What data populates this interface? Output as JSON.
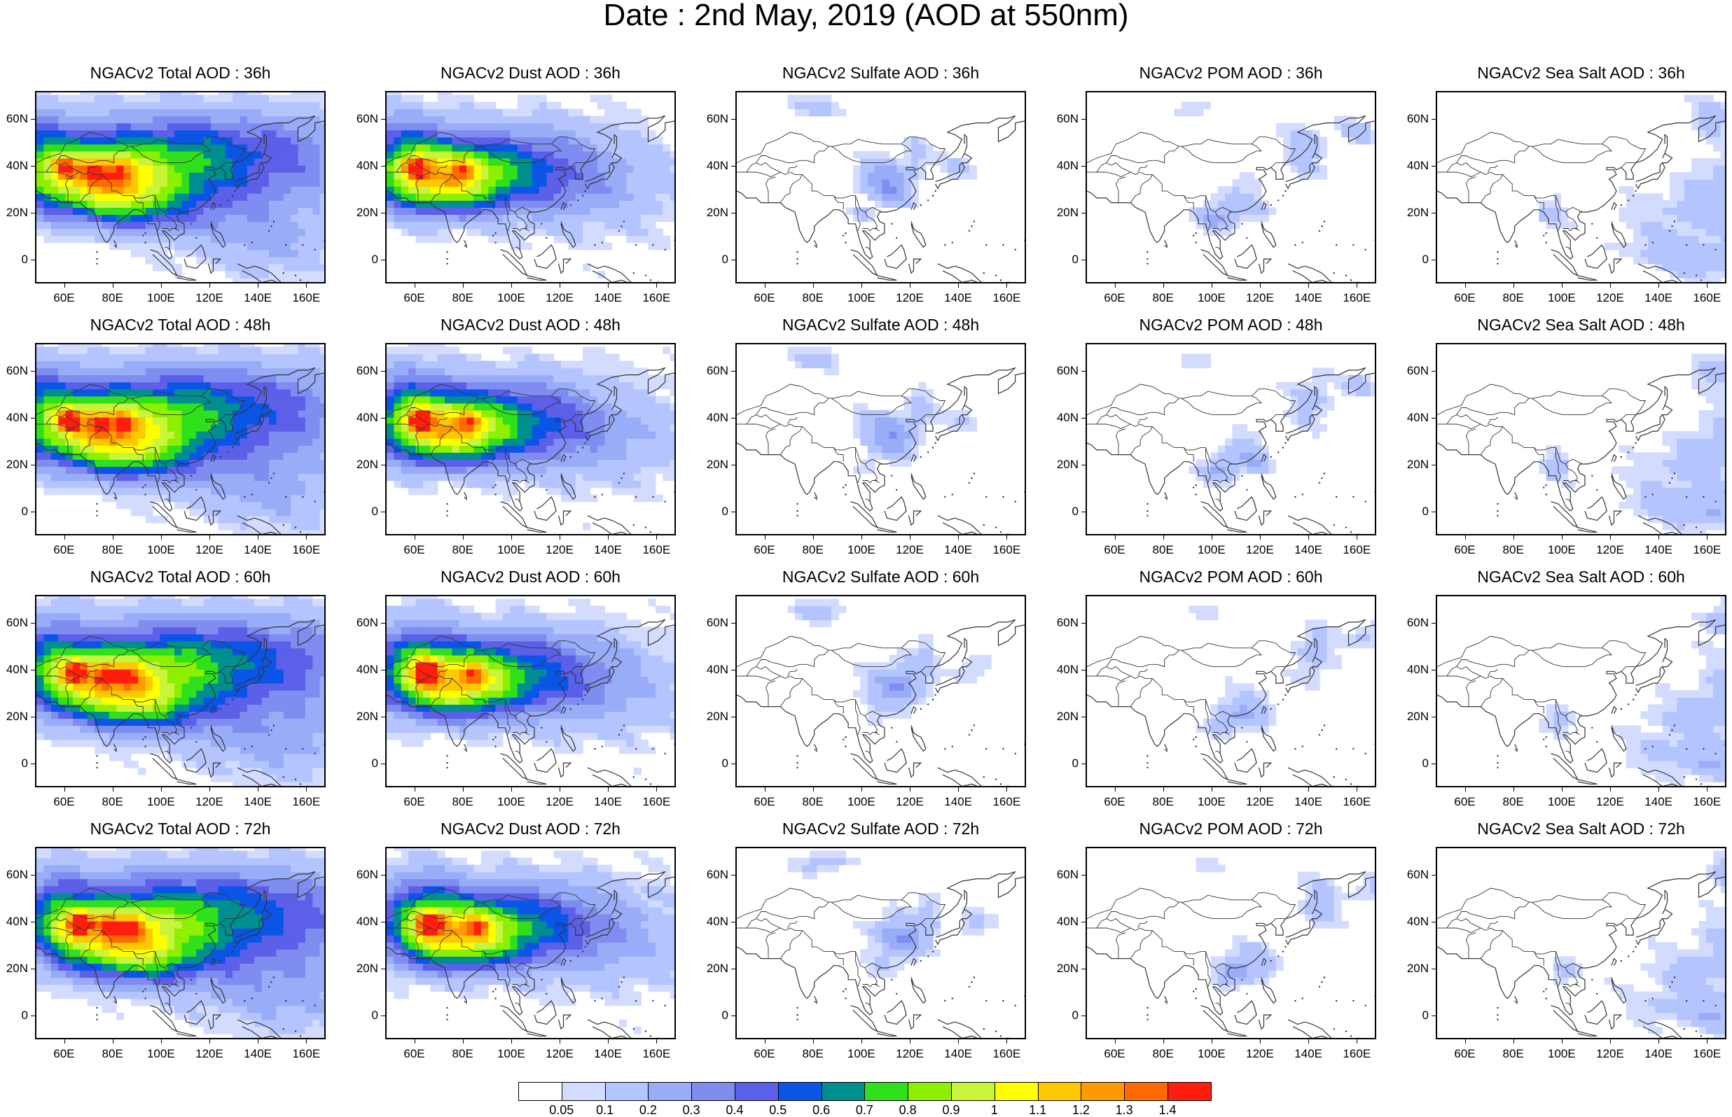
{
  "title": "Date : 2nd May, 2019 (AOD at 550nm)",
  "panel_titles": [
    [
      "NGACv2 Total AOD : 36h",
      "NGACv2 Dust AOD : 36h",
      "NGACv2 Sulfate AOD : 36h",
      "NGACv2 POM AOD : 36h",
      "NGACv2 Sea Salt AOD : 36h"
    ],
    [
      "NGACv2 Total AOD : 48h",
      "NGACv2 Dust AOD : 48h",
      "NGACv2 Sulfate AOD : 48h",
      "NGACv2 POM AOD : 48h",
      "NGACv2 Sea Salt AOD : 48h"
    ],
    [
      "NGACv2 Total AOD : 60h",
      "NGACv2 Dust AOD : 60h",
      "NGACv2 Sulfate AOD : 60h",
      "NGACv2 POM AOD : 60h",
      "NGACv2 Sea Salt AOD : 60h"
    ],
    [
      "NGACv2 Total AOD : 72h",
      "NGACv2 Dust AOD : 72h",
      "NGACv2 Sulfate AOD : 72h",
      "NGACv2 POM AOD : 72h",
      "NGACv2 Sea Salt  AOD : 72h"
    ]
  ],
  "y_tick_labels": [
    "60N",
    "40N",
    "20N",
    "0"
  ],
  "x_tick_labels": [
    "60E",
    "80E",
    "100E",
    "120E",
    "140E",
    "160E"
  ],
  "colorbar": {
    "labels": [
      "0.05",
      "0.1",
      "0.2",
      "0.3",
      "0.4",
      "0.5",
      "0.6",
      "0.7",
      "0.8",
      "0.9",
      "1",
      "1.1",
      "1.2",
      "1.3",
      "1.4"
    ],
    "colors": [
      "#ffffff",
      "#d3dcff",
      "#b4c4ff",
      "#98acf7",
      "#7f8df0",
      "#5c5fe8",
      "#0b55e6",
      "#008f8f",
      "#2fe01b",
      "#8cf000",
      "#c8f53c",
      "#ffff00",
      "#ffc800",
      "#ff9a00",
      "#ff6a00",
      "#ff1e0e"
    ]
  }
}
